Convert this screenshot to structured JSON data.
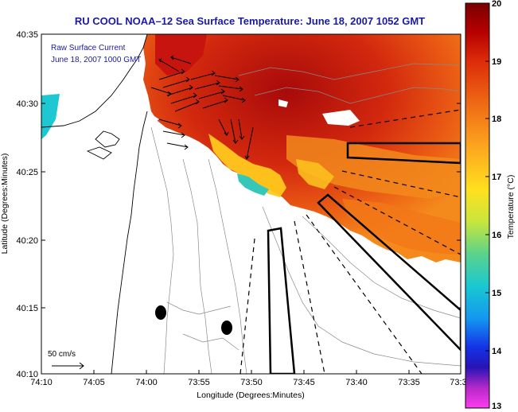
{
  "title": "RU COOL   NOAA–12  Sea Surface Temperature:  June 18, 2007 1052 GMT",
  "legend": {
    "line1": "Raw Surface Current",
    "line2": "June 18, 2007 1000 GMT"
  },
  "scale_label": "50 cm/s",
  "x_axis": {
    "label": "Longitude (Degrees:Minutes)",
    "ticks": [
      "74:10",
      "74:05",
      "74:00",
      "73:55",
      "73:50",
      "73:45",
      "73:40",
      "73:35",
      "73:3"
    ]
  },
  "y_axis": {
    "label": "Latitude (Degrees:Minutes)",
    "ticks": [
      "40:35",
      "40:30",
      "40:25",
      "40:20",
      "40:15",
      "40:10"
    ]
  },
  "colorbar": {
    "label": "Temperature (°C)",
    "ticks": [
      "20",
      "19",
      "18",
      "17",
      "16",
      "15",
      "14",
      "13"
    ],
    "min": 13,
    "max": 20
  },
  "colors": {
    "title": "#1a1aa6",
    "land": "#ffffff",
    "warm": "#c81414",
    "mid": "#f07a1a",
    "cool": "#ffd21e",
    "cold": "#27c8c0"
  }
}
